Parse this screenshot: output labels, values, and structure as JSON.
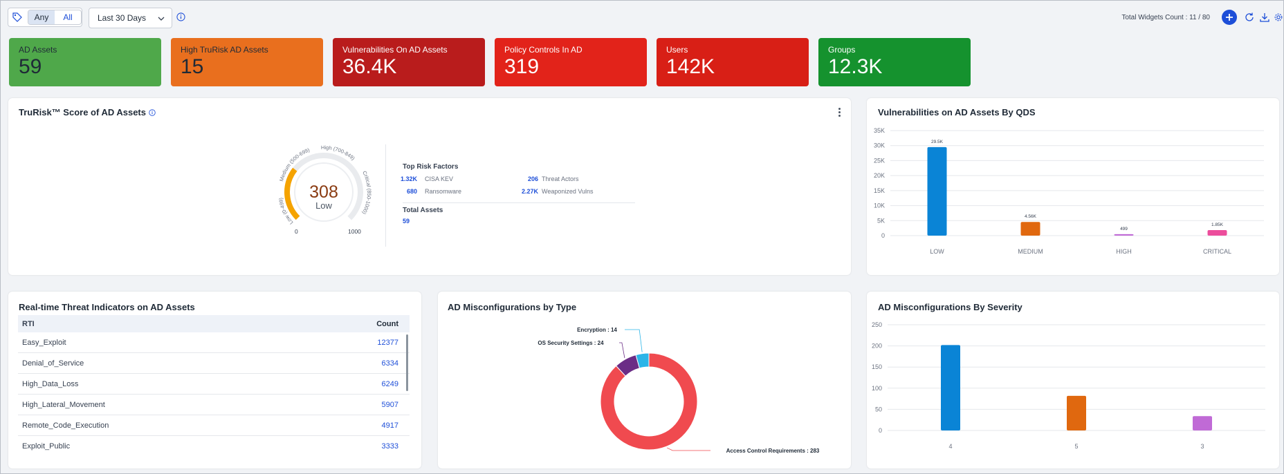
{
  "toolbar": {
    "segment_any": "Any",
    "segment_all": "All",
    "date_range": "Last 30 Days",
    "widgets_count": "Total Widgets Count : 11 / 80"
  },
  "kpis": [
    {
      "title": "AD Assets",
      "value": "59",
      "color": "#4fa84a"
    },
    {
      "title": "High TruRisk AD Assets",
      "value": "15",
      "color": "#e96f1e"
    },
    {
      "title": "Vulnerabilities On AD Assets",
      "value": "36.4K",
      "color": "#b91c1c"
    },
    {
      "title": "Policy Controls In AD",
      "value": "319",
      "color": "#e2231a"
    },
    {
      "title": "Users",
      "value": "142K",
      "color": "#d81f16"
    },
    {
      "title": "Groups",
      "value": "12.3K",
      "color": "#15922e"
    }
  ],
  "trurisk": {
    "title": "TruRisk™ Score of AD Assets",
    "score": "308",
    "score_label": "Low",
    "score_value": 308,
    "gauge_min": "0",
    "gauge_max": "1000",
    "band_low": "Low (0-499)",
    "band_medium": "Medium (500-699)",
    "band_high": "High (700-849)",
    "band_critical": "Critical (850-1000)",
    "risk_factors_title": "Top Risk Factors",
    "risk_factors": [
      {
        "value": "1.32K",
        "label": "CISA KEV"
      },
      {
        "value": "206",
        "label": "Threat Actors"
      },
      {
        "value": "680",
        "label": "Ransomware"
      },
      {
        "value": "2.27K",
        "label": "Weaponized Vulns"
      }
    ],
    "total_assets_title": "Total Assets",
    "total_assets": "59"
  },
  "qds_chart": {
    "title": "Vulnerabilities on AD Assets By QDS"
  },
  "rti": {
    "title": "Real-time Threat Indicators on AD Assets",
    "col_rti": "RTI",
    "col_count": "Count",
    "rows": [
      {
        "name": "Easy_Exploit",
        "count": "12377"
      },
      {
        "name": "Denial_of_Service",
        "count": "6334"
      },
      {
        "name": "High_Data_Loss",
        "count": "6249"
      },
      {
        "name": "High_Lateral_Movement",
        "count": "5907"
      },
      {
        "name": "Remote_Code_Execution",
        "count": "4917"
      },
      {
        "name": "Exploit_Public",
        "count": "3333"
      }
    ]
  },
  "misconfig_type": {
    "title": "AD Misconfigurations by Type"
  },
  "misconfig_severity": {
    "title": "AD Misconfigurations By Severity"
  },
  "chart_data": [
    {
      "type": "bar",
      "categories": [
        "LOW",
        "MEDIUM",
        "HIGH",
        "CRITICAL"
      ],
      "values": [
        29500,
        4560,
        499,
        1850
      ],
      "data_labels": [
        "29.5K",
        "4.56K",
        "499",
        "1.85K"
      ],
      "colors": [
        "#0a84d6",
        "#e0680f",
        "#c06ad6",
        "#ec4d9c"
      ],
      "y_ticks": [
        "0",
        "5K",
        "10K",
        "15K",
        "20K",
        "25K",
        "30K",
        "35K"
      ],
      "ylim": [
        0,
        35000
      ],
      "grid": true
    },
    {
      "type": "pie",
      "labels": [
        "Access Control Requirements",
        "OS Security Settings",
        "Encryption"
      ],
      "values": [
        283,
        24,
        14
      ],
      "label_texts": [
        "Access Control Requirements : 283",
        "OS Security Settings : 24",
        "Encryption : 14"
      ],
      "colors": [
        "#f04a4f",
        "#6b2d86",
        "#2bb5e8"
      ]
    },
    {
      "type": "bar",
      "categories": [
        "4",
        "5",
        "3"
      ],
      "values": [
        202,
        82,
        34
      ],
      "colors": [
        "#0a84d6",
        "#e0680f",
        "#c06ad6"
      ],
      "y_ticks": [
        "0",
        "50",
        "100",
        "150",
        "200",
        "250"
      ],
      "ylim": [
        0,
        250
      ],
      "grid": true
    }
  ]
}
